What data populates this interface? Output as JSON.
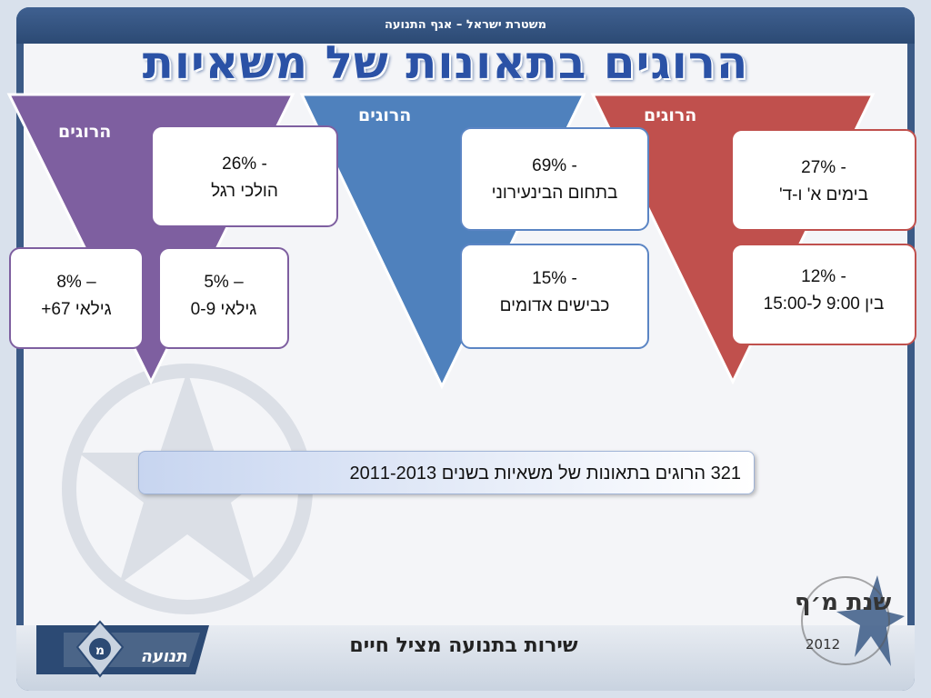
{
  "header": {
    "top_text": "משטרת ישראל – אגף התנועה"
  },
  "title": "הרוגים בתאונות של משאיות",
  "triangles": [
    {
      "label": "הרוגים",
      "color": "#7e5fa0"
    },
    {
      "label": "הרוגים",
      "color": "#4f81bd"
    },
    {
      "label": "הרוגים",
      "color": "#c0504d"
    }
  ],
  "boxes": {
    "pedestrians": {
      "pct": "- 26%",
      "text": "הולכי רגל"
    },
    "elderly": {
      "pct": "– 8%",
      "text": "גילאי 67+"
    },
    "children": {
      "pct": "– 5%",
      "text": "גילאי 0-9"
    },
    "urban": {
      "pct": "- 69%",
      "text": "בתחום הבינעירוני"
    },
    "red_roads": {
      "pct": "- 15%",
      "text": "כבישים אדומים"
    },
    "weekdays": {
      "pct": "- 27%",
      "text": "בימים א' ו-ד'"
    },
    "hours": {
      "pct": "- 12%",
      "text": "בין 9:00 ל-15:00"
    }
  },
  "summary": "321 הרוגים בתאונות של משאיות בשנים 2011-2013",
  "footer": {
    "slogan": "שירות בתנועה מציל חיים",
    "logo_text": "תנועה",
    "logo_badge": "מ",
    "year_text": "שנת מ׳ף",
    "year_num": "2012"
  }
}
